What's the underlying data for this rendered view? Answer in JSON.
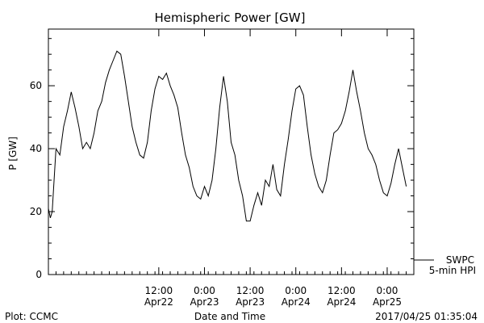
{
  "chart_data": {
    "type": "line",
    "title": "Hemispheric Power [GW]",
    "xlabel": "Date and Time",
    "ylabel": "P [GW]",
    "ylim": [
      0,
      78
    ],
    "yticks": [
      0,
      20,
      40,
      60
    ],
    "xlim": [
      "2017-04-21T07:00",
      "2017-04-25T07:00"
    ],
    "xticks": [
      {
        "t": "2017-04-22T12:00",
        "line1": "12:00",
        "line2": "Apr22"
      },
      {
        "t": "2017-04-23T00:00",
        "line1": "0:00",
        "line2": "Apr23"
      },
      {
        "t": "2017-04-23T12:00",
        "line1": "12:00",
        "line2": "Apr23"
      },
      {
        "t": "2017-04-24T00:00",
        "line1": "0:00",
        "line2": "Apr24"
      },
      {
        "t": "2017-04-24T12:00",
        "line1": "12:00",
        "line2": "Apr24"
      },
      {
        "t": "2017-04-25T00:00",
        "line1": "0:00",
        "line2": "Apr25"
      }
    ],
    "legend": {
      "placement": "bottom-right",
      "line1": "SWPC",
      "line2": "5-min HPI"
    },
    "series": [
      {
        "name": "SWPC 5-min HPI",
        "color": "#000000",
        "points": [
          [
            "2017-04-21T07:00",
            21
          ],
          [
            "2017-04-21T07:30",
            18
          ],
          [
            "2017-04-21T08:00",
            20
          ],
          [
            "2017-04-21T09:00",
            40
          ],
          [
            "2017-04-21T10:00",
            38
          ],
          [
            "2017-04-21T11:00",
            47
          ],
          [
            "2017-04-21T12:00",
            52
          ],
          [
            "2017-04-21T13:00",
            58
          ],
          [
            "2017-04-21T14:00",
            53
          ],
          [
            "2017-04-21T15:00",
            47
          ],
          [
            "2017-04-21T16:00",
            40
          ],
          [
            "2017-04-21T17:00",
            42
          ],
          [
            "2017-04-21T18:00",
            40
          ],
          [
            "2017-04-21T19:00",
            45
          ],
          [
            "2017-04-21T20:00",
            52
          ],
          [
            "2017-04-21T21:00",
            55
          ],
          [
            "2017-04-21T22:00",
            61
          ],
          [
            "2017-04-21T23:00",
            65
          ],
          [
            "2017-04-22T00:00",
            68
          ],
          [
            "2017-04-22T01:00",
            71
          ],
          [
            "2017-04-22T02:00",
            70
          ],
          [
            "2017-04-22T03:00",
            63
          ],
          [
            "2017-04-22T04:00",
            55
          ],
          [
            "2017-04-22T05:00",
            47
          ],
          [
            "2017-04-22T06:00",
            42
          ],
          [
            "2017-04-22T07:00",
            38
          ],
          [
            "2017-04-22T08:00",
            37
          ],
          [
            "2017-04-22T09:00",
            42
          ],
          [
            "2017-04-22T10:00",
            52
          ],
          [
            "2017-04-22T11:00",
            59
          ],
          [
            "2017-04-22T12:00",
            63
          ],
          [
            "2017-04-22T13:00",
            62
          ],
          [
            "2017-04-22T14:00",
            64
          ],
          [
            "2017-04-22T15:00",
            60
          ],
          [
            "2017-04-22T16:00",
            57
          ],
          [
            "2017-04-22T17:00",
            53
          ],
          [
            "2017-04-22T18:00",
            45
          ],
          [
            "2017-04-22T19:00",
            38
          ],
          [
            "2017-04-22T20:00",
            34
          ],
          [
            "2017-04-22T21:00",
            28
          ],
          [
            "2017-04-22T22:00",
            25
          ],
          [
            "2017-04-22T23:00",
            24
          ],
          [
            "2017-04-23T00:00",
            28
          ],
          [
            "2017-04-23T01:00",
            25
          ],
          [
            "2017-04-23T02:00",
            30
          ],
          [
            "2017-04-23T03:00",
            40
          ],
          [
            "2017-04-23T04:00",
            53
          ],
          [
            "2017-04-23T05:00",
            63
          ],
          [
            "2017-04-23T06:00",
            55
          ],
          [
            "2017-04-23T07:00",
            42
          ],
          [
            "2017-04-23T08:00",
            38
          ],
          [
            "2017-04-23T09:00",
            30
          ],
          [
            "2017-04-23T10:00",
            25
          ],
          [
            "2017-04-23T11:00",
            17
          ],
          [
            "2017-04-23T12:00",
            17
          ],
          [
            "2017-04-23T13:00",
            22
          ],
          [
            "2017-04-23T14:00",
            26
          ],
          [
            "2017-04-23T15:00",
            22
          ],
          [
            "2017-04-23T16:00",
            30
          ],
          [
            "2017-04-23T17:00",
            28
          ],
          [
            "2017-04-23T18:00",
            35
          ],
          [
            "2017-04-23T19:00",
            27
          ],
          [
            "2017-04-23T20:00",
            25
          ],
          [
            "2017-04-23T21:00",
            35
          ],
          [
            "2017-04-23T22:00",
            43
          ],
          [
            "2017-04-23T23:00",
            52
          ],
          [
            "2017-04-24T00:00",
            59
          ],
          [
            "2017-04-24T01:00",
            60
          ],
          [
            "2017-04-24T02:00",
            57
          ],
          [
            "2017-04-24T03:00",
            47
          ],
          [
            "2017-04-24T04:00",
            38
          ],
          [
            "2017-04-24T05:00",
            32
          ],
          [
            "2017-04-24T06:00",
            28
          ],
          [
            "2017-04-24T07:00",
            26
          ],
          [
            "2017-04-24T08:00",
            30
          ],
          [
            "2017-04-24T09:00",
            38
          ],
          [
            "2017-04-24T10:00",
            45
          ],
          [
            "2017-04-24T11:00",
            46
          ],
          [
            "2017-04-24T12:00",
            48
          ],
          [
            "2017-04-24T13:00",
            52
          ],
          [
            "2017-04-24T14:00",
            58
          ],
          [
            "2017-04-24T15:00",
            65
          ],
          [
            "2017-04-24T16:00",
            58
          ],
          [
            "2017-04-24T17:00",
            52
          ],
          [
            "2017-04-24T18:00",
            45
          ],
          [
            "2017-04-24T19:00",
            40
          ],
          [
            "2017-04-24T20:00",
            38
          ],
          [
            "2017-04-24T21:00",
            35
          ],
          [
            "2017-04-24T22:00",
            30
          ],
          [
            "2017-04-24T23:00",
            26
          ],
          [
            "2017-04-25T00:00",
            25
          ],
          [
            "2017-04-25T01:00",
            29
          ],
          [
            "2017-04-25T02:00",
            35
          ],
          [
            "2017-04-25T03:00",
            40
          ],
          [
            "2017-04-25T04:00",
            34
          ],
          [
            "2017-04-25T05:00",
            28
          ]
        ]
      }
    ]
  },
  "footer": {
    "left": "Plot: CCMC",
    "center": "Date and Time",
    "right": "2017/04/25 01:35:04"
  }
}
